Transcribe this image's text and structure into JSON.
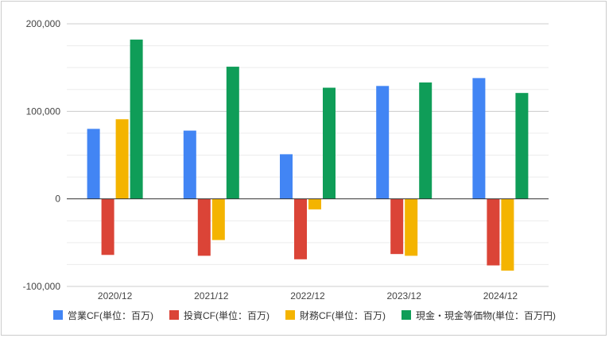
{
  "chart_data": {
    "type": "bar",
    "title": "",
    "xlabel": "",
    "ylabel": "",
    "categories": [
      "2020/12",
      "2021/12",
      "2022/12",
      "2023/12",
      "2024/12"
    ],
    "series": [
      {
        "name": "営業CF(単位：百万)",
        "color": "#4285f4",
        "values": [
          80000,
          78000,
          51000,
          129000,
          138000
        ]
      },
      {
        "name": "投資CF(単位：百万)",
        "color": "#db4437",
        "values": [
          -64000,
          -65000,
          -69000,
          -63000,
          -76000
        ]
      },
      {
        "name": "財務CF(単位：百万)",
        "color": "#f4b400",
        "values": [
          91000,
          -47000,
          -12000,
          -65000,
          -82000
        ]
      },
      {
        "name": "現金・現金等価物(単位：百万円)",
        "color": "#0f9d58",
        "values": [
          182000,
          151000,
          127000,
          133000,
          121000
        ]
      }
    ],
    "ylim": [
      -100000,
      200000
    ],
    "yticks": [
      -100000,
      0,
      100000,
      200000
    ],
    "ytick_labels": [
      "-100,000",
      "0",
      "100,000",
      "200,000"
    ],
    "grid": true,
    "legend": "bottom"
  }
}
